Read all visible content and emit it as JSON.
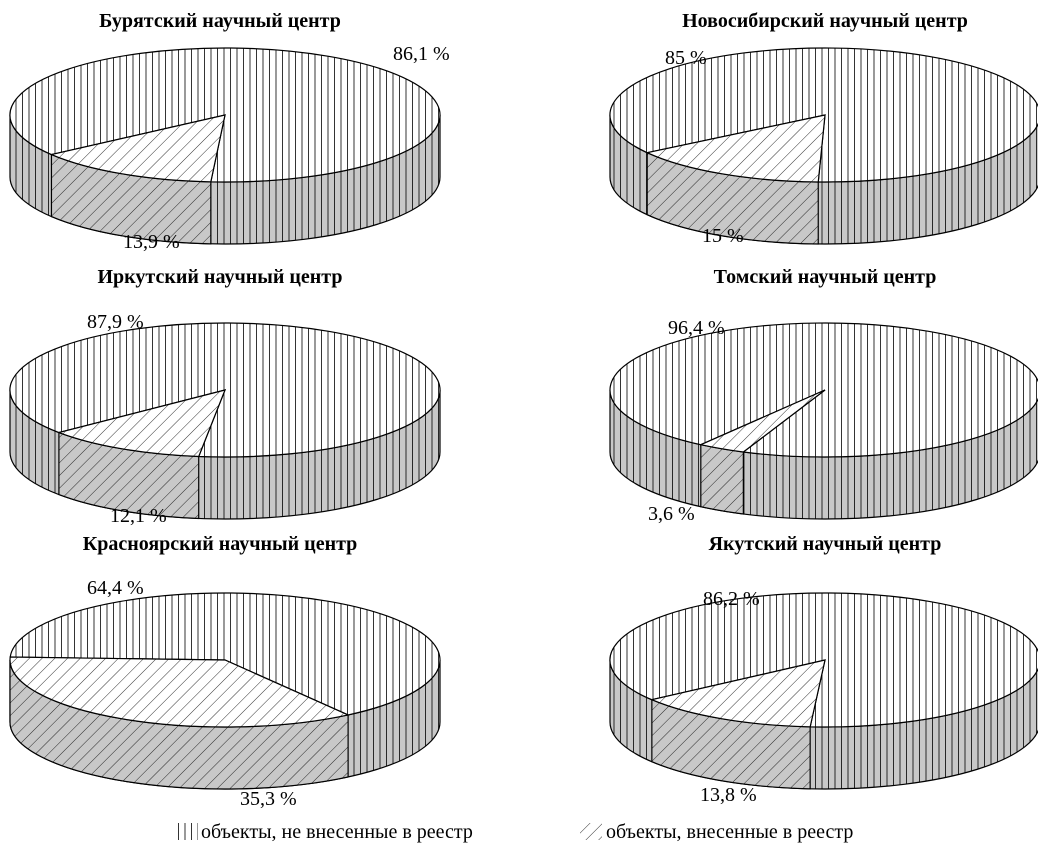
{
  "chart_data": [
    {
      "type": "pie",
      "title": "Бурятский научный центр",
      "categories": [
        "объекты, не внесенные в реестр",
        "объекты, внесенные в реестр"
      ],
      "values": [
        86.1,
        13.9
      ],
      "labels": [
        "86,1 %",
        "13,9 %"
      ]
    },
    {
      "type": "pie",
      "title": "Новосибирский научный центр",
      "categories": [
        "объекты, не внесенные в реестр",
        "объекты, внесенные в реестр"
      ],
      "values": [
        85,
        15
      ],
      "labels": [
        "85 %",
        "15 %"
      ]
    },
    {
      "type": "pie",
      "title": "Иркутский научный центр",
      "categories": [
        "объекты, не внесенные в реестр",
        "объекты, внесенные в реестр"
      ],
      "values": [
        87.9,
        12.1
      ],
      "labels": [
        "87,9 %",
        "12,1 %"
      ]
    },
    {
      "type": "pie",
      "title": "Томский научный центр",
      "categories": [
        "объекты, не внесенные в реестр",
        "объекты, внесенные в реестр"
      ],
      "values": [
        96.4,
        3.6
      ],
      "labels": [
        "96,4 %",
        "3,6 %"
      ]
    },
    {
      "type": "pie",
      "title": "Красноярский научный центр",
      "categories": [
        "объекты, не внесенные в реестр",
        "объекты, внесенные в реестр"
      ],
      "values": [
        64.4,
        35.3
      ],
      "labels": [
        "64,4 %",
        "35,3 %"
      ]
    },
    {
      "type": "pie",
      "title": "Якутский научный центр",
      "categories": [
        "объекты, не внесенные в реестр",
        "объекты, внесенные в реестр"
      ],
      "values": [
        86.2,
        13.8
      ],
      "labels": [
        "86,2 %",
        "13,8 %"
      ]
    }
  ],
  "legend": {
    "placement": "bottom",
    "items": [
      {
        "label": "объекты, не внесенные в реестр",
        "pattern": "vertical-lines"
      },
      {
        "label": "объекты, внесенные в реестр",
        "pattern": "diagonal-lines"
      }
    ]
  },
  "colors": {
    "ink": "#000000",
    "side": "#c8c8c8",
    "background": "#ffffff"
  }
}
